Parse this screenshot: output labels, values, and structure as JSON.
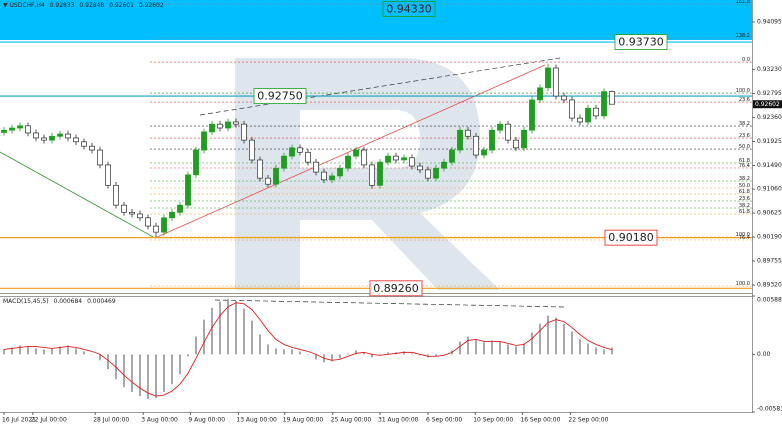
{
  "chart_data": [
    {
      "type": "candlestick",
      "title": "USDCHF,H4",
      "xlim": [
        -0.5,
        93.5
      ],
      "xticks": [
        {
          "value": 0,
          "label": "16 Jul 2021"
        },
        {
          "value": 3.6,
          "label": "22 Jul 00:00"
        },
        {
          "value": 11.4,
          "label": "28 Jul 00:00"
        },
        {
          "value": 17.4,
          "label": "3 Aug 00:00"
        },
        {
          "value": 23.3,
          "label": "9 Aug 00:00"
        },
        {
          "value": 29.3,
          "label": "13 Aug 00:00"
        },
        {
          "value": 35.1,
          "label": "19 Aug 00:00"
        },
        {
          "value": 41.1,
          "label": "25 Aug 00:00"
        },
        {
          "value": 47,
          "label": "31 Aug 00:00"
        },
        {
          "value": 53,
          "label": "6 Sep 00:00"
        },
        {
          "value": 58.9,
          "label": "10 Sep 00:00"
        },
        {
          "value": 64.8,
          "label": "16 Sep 00:00"
        },
        {
          "value": 70.8,
          "label": "22 Sep 00:00"
        }
      ],
      "ylim": [
        0.89175,
        0.94494
      ],
      "yticks": [
        0.94095,
        {
          "value": 0.9323,
          "label": "0.93230"
        },
        0.92795,
        {
          "value": 0.9236,
          "label": "0.92360"
        },
        0.91925,
        {
          "value": 0.9149,
          "label": "0.91490"
        },
        {
          "value": 0.9106,
          "label": "0.91060"
        },
        0.90625,
        {
          "value": 0.9019,
          "label": "0.90190"
        },
        0.89755,
        {
          "value": 0.8932,
          "label": "0.89320"
        }
      ],
      "up_color": "#1f9e1f",
      "down_color": "#2b2b2b",
      "open": [
        0.9209,
        0.9213,
        0.9217,
        0.9221,
        0.9208,
        0.9199,
        0.9195,
        0.9202,
        0.9206,
        0.9199,
        0.9192,
        0.9184,
        0.9177,
        0.915,
        0.9113,
        0.9077,
        0.9064,
        0.9061,
        0.9054,
        0.9039,
        0.9028,
        0.9054,
        0.9064,
        0.9077,
        0.9132,
        0.9177,
        0.921,
        0.9224,
        0.9217,
        0.9228,
        0.9224,
        0.9195,
        0.9159,
        0.9126,
        0.9115,
        0.9144,
        0.9166,
        0.9181,
        0.9173,
        0.9155,
        0.9137,
        0.9123,
        0.913,
        0.9144,
        0.9166,
        0.9177,
        0.915,
        0.9113,
        0.9155,
        0.9166,
        0.9159,
        0.9163,
        0.9148,
        0.9141,
        0.9126,
        0.9144,
        0.9155,
        0.9177,
        0.9213,
        0.9202,
        0.9168,
        0.9177,
        0.9213,
        0.9224,
        0.9195,
        0.9181,
        0.9213,
        0.9268,
        0.929,
        0.9326,
        0.9275,
        0.9268,
        0.9235,
        0.9228,
        0.9253,
        0.9239,
        0.92833
      ],
      "high": [
        0.9219,
        0.9223,
        0.9227,
        0.9227,
        0.9214,
        0.9205,
        0.9208,
        0.9212,
        0.9212,
        0.9205,
        0.9198,
        0.919,
        0.9183,
        0.9156,
        0.9119,
        0.9083,
        0.907,
        0.9067,
        0.906,
        0.9045,
        0.906,
        0.907,
        0.9083,
        0.9138,
        0.9183,
        0.9216,
        0.923,
        0.923,
        0.9234,
        0.9234,
        0.923,
        0.9201,
        0.9165,
        0.9132,
        0.915,
        0.9172,
        0.9187,
        0.9187,
        0.9179,
        0.9161,
        0.9143,
        0.9136,
        0.915,
        0.9172,
        0.9183,
        0.9183,
        0.9156,
        0.9161,
        0.9172,
        0.9172,
        0.9169,
        0.9169,
        0.9154,
        0.9147,
        0.915,
        0.9161,
        0.9183,
        0.9219,
        0.9219,
        0.9208,
        0.9183,
        0.9219,
        0.923,
        0.923,
        0.9201,
        0.9219,
        0.9274,
        0.9296,
        0.9334,
        0.9332,
        0.9281,
        0.9274,
        0.9241,
        0.9259,
        0.9259,
        0.9289,
        0.92848
      ],
      "low": [
        0.9203,
        0.9207,
        0.9211,
        0.9202,
        0.9193,
        0.9189,
        0.9189,
        0.9196,
        0.9193,
        0.9186,
        0.9178,
        0.9171,
        0.9144,
        0.9107,
        0.9071,
        0.9058,
        0.9055,
        0.9048,
        0.9033,
        0.9019,
        0.9022,
        0.9048,
        0.9058,
        0.9071,
        0.9126,
        0.9171,
        0.9204,
        0.9211,
        0.9211,
        0.9218,
        0.9189,
        0.9153,
        0.912,
        0.9109,
        0.9109,
        0.9138,
        0.916,
        0.9167,
        0.9149,
        0.9131,
        0.9117,
        0.9117,
        0.9124,
        0.9138,
        0.916,
        0.9144,
        0.9107,
        0.9107,
        0.9149,
        0.9153,
        0.9153,
        0.9142,
        0.9135,
        0.912,
        0.912,
        0.9138,
        0.9149,
        0.9171,
        0.9196,
        0.9162,
        0.9162,
        0.9171,
        0.9207,
        0.9189,
        0.9175,
        0.9175,
        0.9207,
        0.9262,
        0.9284,
        0.9269,
        0.9262,
        0.9229,
        0.9222,
        0.9222,
        0.9233,
        0.9233,
        0.92601
      ],
      "close": [
        0.9213,
        0.9217,
        0.9221,
        0.9208,
        0.9199,
        0.9195,
        0.9202,
        0.9206,
        0.9199,
        0.9192,
        0.9184,
        0.9177,
        0.915,
        0.9113,
        0.9077,
        0.9064,
        0.9061,
        0.9054,
        0.9039,
        0.9028,
        0.9054,
        0.9064,
        0.9077,
        0.9132,
        0.9177,
        0.921,
        0.9224,
        0.9217,
        0.9228,
        0.9224,
        0.9195,
        0.9159,
        0.9126,
        0.9115,
        0.9144,
        0.9166,
        0.9181,
        0.9173,
        0.9155,
        0.9137,
        0.9123,
        0.913,
        0.9144,
        0.9166,
        0.9177,
        0.915,
        0.9113,
        0.9155,
        0.9166,
        0.9159,
        0.9163,
        0.9148,
        0.9141,
        0.9126,
        0.9144,
        0.9155,
        0.9177,
        0.9213,
        0.9202,
        0.9168,
        0.9177,
        0.9213,
        0.9224,
        0.9195,
        0.9181,
        0.9213,
        0.9268,
        0.929,
        0.9326,
        0.9275,
        0.9268,
        0.9235,
        0.9228,
        0.9253,
        0.9239,
        0.9283,
        0.92602
      ],
      "annotations": [
        {
          "value": 0.9433,
          "label": "0.94330",
          "color": "#1f9e1f",
          "line_color": "#00bfff"
        },
        {
          "value": 0.9373,
          "label": "0.93730",
          "color": "#1f9e1f",
          "line_color": "#00bfff"
        },
        {
          "value": 0.9275,
          "label": "0.92750",
          "color": "#1f9e1f",
          "line_color": "#17a2b8"
        },
        {
          "value": 0.9018,
          "label": "0.90180",
          "color": "#e02020",
          "line_color": "#f0a020"
        },
        {
          "value": 0.8926,
          "label": "0.89260",
          "color": "#e02020",
          "line_color": "#f0a020"
        }
      ],
      "levels": [
        {
          "value": 0.94421,
          "label": "161.8",
          "color": "#888888"
        },
        {
          "value": 0.93804,
          "label": "138.2",
          "color": "#888888"
        },
        {
          "value": 0.93368,
          "label": "0.0",
          "color": "#e04040"
        },
        {
          "value": 0.92805,
          "label": "100.0",
          "color": "#1f9e1f"
        },
        {
          "value": 0.92642,
          "label": "23.6",
          "color": "#e04040"
        },
        {
          "value": 0.92206,
          "label": "38.2",
          "color": "#333333"
        },
        {
          "value": 0.91988,
          "label": "23.6",
          "color": "#e04040"
        },
        {
          "value": 0.91788,
          "label": "50.0",
          "color": "#333333"
        },
        {
          "value": 0.91535,
          "label": "61.8",
          "color": "#1f9e1f"
        },
        {
          "value": 0.91444,
          "label": "76.4",
          "color": "#e04040"
        },
        {
          "value": 0.91208,
          "label": "38.2",
          "color": "#1f9e1f"
        },
        {
          "value": 0.91081,
          "label": "50.0",
          "color": "#f0a020"
        },
        {
          "value": 0.90972,
          "label": "61.8",
          "color": "#f0a020"
        },
        {
          "value": 0.90845,
          "label": "23.6",
          "color": "#1f9e1f"
        },
        {
          "value": 0.90718,
          "label": "38.2",
          "color": "#1f9e1f"
        },
        {
          "value": 0.90609,
          "label": "61.8",
          "color": "#f0a020"
        },
        {
          "value": 0.90191,
          "label": "100.0",
          "color": "#f0a020"
        },
        {
          "value": 0.90137,
          "label": "76.4",
          "color": "#f0a020"
        },
        {
          "value": 0.89302,
          "label": "100.0",
          "color": "#f0a020"
        }
      ]
    },
    {
      "type": "macd",
      "title": "MACD(15,45,5)",
      "ylim": [
        -0.00581,
        0.005882
      ],
      "yticks": [
        0.005882,
        {
          "value": 0,
          "label": "0.00"
        },
        -0.00581
      ],
      "histogram_color": "#a8a8a8",
      "signal_color": "#e02020",
      "histogram": [
        0.0005,
        0.0007,
        0.0009,
        0.0008,
        0.0006,
        0.0005,
        0.0006,
        0.0008,
        0.0009,
        0.0006,
        0.0003,
        0,
        -0.0006,
        -0.0015,
        -0.0025,
        -0.0033,
        -0.0038,
        -0.0042,
        -0.0045,
        -0.0044,
        -0.0038,
        -0.003,
        -0.002,
        -0.0002,
        0.0018,
        0.0035,
        0.0047,
        0.0053,
        0.0056,
        0.0054,
        0.0046,
        0.0034,
        0.002,
        0.001,
        0.0006,
        0.0005,
        0.0005,
        0.0003,
        0,
        -0.0005,
        -0.0008,
        -0.0007,
        -0.0004,
        0.0001,
        0.0004,
        0.0002,
        -0.0003,
        -0.0001,
        0.0002,
        0.0002,
        0.0003,
        0.0001,
        -0.0001,
        -0.0003,
        -0.0002,
        0,
        0.0004,
        0.0013,
        0.0018,
        0.0015,
        0.0012,
        0.0014,
        0.0013,
        0.001,
        0.0008,
        0.0011,
        0.0022,
        0.0031,
        0.0039,
        0.0037,
        0.0031,
        0.0023,
        0.0015,
        0.0011,
        0.0007,
        0.0005,
        0.000684
      ],
      "signal": [
        0.0005,
        0.0006,
        0.0007,
        0.0008,
        0.0008,
        0.0007,
        0.0006,
        0.0007,
        0.0008,
        0.0007,
        0.0005,
        0.0003,
        0,
        -0.0006,
        -0.0013,
        -0.0021,
        -0.0028,
        -0.0034,
        -0.0039,
        -0.0042,
        -0.0041,
        -0.0037,
        -0.003,
        -0.0019,
        -0.0004,
        0.0012,
        0.0027,
        0.0039,
        0.0048,
        0.0052,
        0.0051,
        0.0045,
        0.0035,
        0.0024,
        0.0015,
        0.001,
        0.0007,
        0.0005,
        0.0003,
        0,
        -0.0004,
        -0.0006,
        -0.0005,
        -0.0002,
        0.0001,
        0.0002,
        0,
        -0.0001,
        0,
        0.0001,
        0.0002,
        0.0002,
        0,
        -0.0002,
        -0.0002,
        -0.0001,
        0.0002,
        0.0008,
        0.0014,
        0.0015,
        0.0013,
        0.0013,
        0.0013,
        0.0011,
        0.0009,
        0.001,
        0.0016,
        0.0024,
        0.0032,
        0.0035,
        0.0033,
        0.0027,
        0.002,
        0.0014,
        0.001,
        0.0007,
        0.000469
      ]
    }
  ]
}
